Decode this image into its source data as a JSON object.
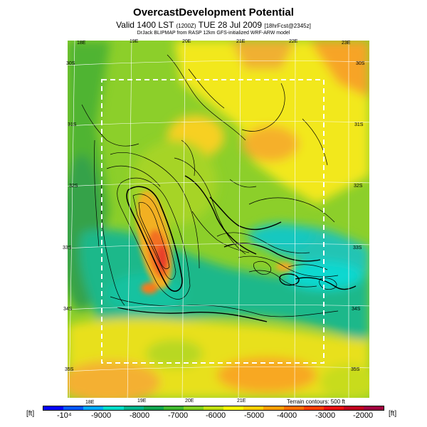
{
  "header": {
    "title": "OvercastDevelopment Potential",
    "subtitle_main": "Valid 1400 LST",
    "subtitle_small1": "(1200Z)",
    "subtitle_date": "TUE 28 Jul 2009",
    "subtitle_small2": "[18hrFcst@2345z]",
    "credit": "DrJack BLIPMAP from RASP 12km GFS-initialized WRF-ARW model"
  },
  "map": {
    "top_lon_labels": [
      "18E",
      "19E",
      "20E",
      "21E",
      "22E",
      "23E"
    ],
    "bottom_lon_labels": [
      "18E",
      "19E",
      "20E",
      "21E"
    ],
    "left_lat_labels": [
      "30S",
      "31S",
      "32S",
      "33S",
      "34S",
      "35S"
    ],
    "right_lat_labels": [
      "30S",
      "31S",
      "32S",
      "33S",
      "34S",
      "35S"
    ],
    "terrain_note": "Terrain contours: 500 ft"
  },
  "legend": {
    "unit_left": "[ft]",
    "unit_right": "[ft]",
    "labels": [
      "-10⁴",
      "-9000",
      "-8000",
      "-7000",
      "-6000",
      "-5000",
      "-4000",
      "-3000",
      "-2000"
    ],
    "colors": [
      "#0000ff",
      "#0057ff",
      "#00a9ff",
      "#00dcc8",
      "#00b48c",
      "#10a450",
      "#40b830",
      "#80d020",
      "#c0e010",
      "#ffff00",
      "#ffd000",
      "#ffa000",
      "#ff7000",
      "#ff4000",
      "#e81010",
      "#c00020",
      "#a00040"
    ]
  }
}
